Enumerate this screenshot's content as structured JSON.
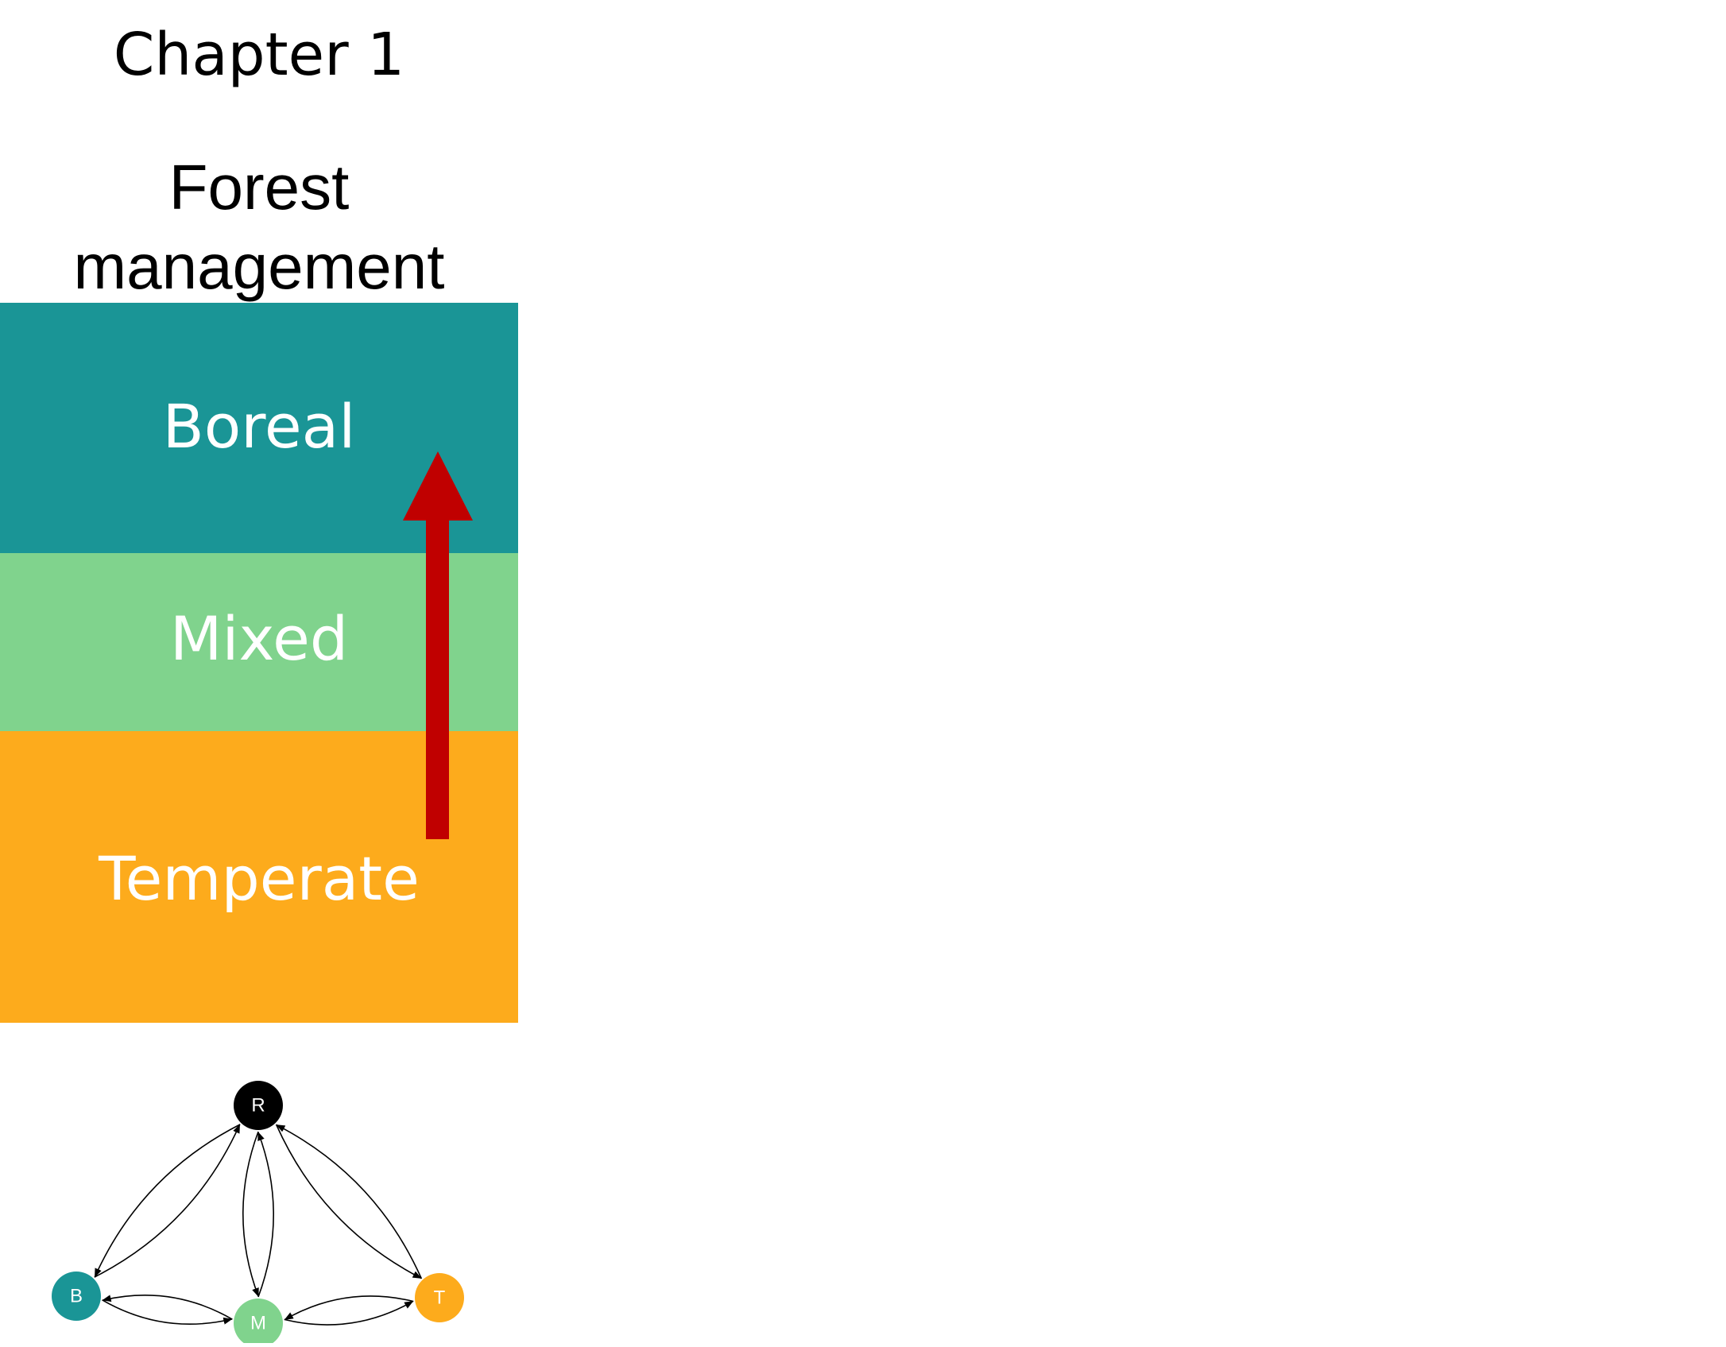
{
  "header": {
    "chapter": "Chapter 1",
    "title_line1": "Forest",
    "title_line2": "management"
  },
  "zones": [
    {
      "label": "Boreal",
      "color": "#1a9596"
    },
    {
      "label": "Mixed",
      "color": "#80d38d"
    },
    {
      "label": "Temperate",
      "color": "#fdab1c"
    }
  ],
  "arrow": {
    "color": "#c00000",
    "direction": "up"
  },
  "network": {
    "nodes": [
      {
        "id": "R",
        "label": "R",
        "color": "#000000"
      },
      {
        "id": "B",
        "label": "B",
        "color": "#1a9596"
      },
      {
        "id": "M",
        "label": "M",
        "color": "#80d38d"
      },
      {
        "id": "T",
        "label": "T",
        "color": "#fdab1c"
      }
    ],
    "edges": [
      [
        "R",
        "B"
      ],
      [
        "B",
        "R"
      ],
      [
        "R",
        "M"
      ],
      [
        "M",
        "R"
      ],
      [
        "R",
        "T"
      ],
      [
        "T",
        "R"
      ],
      [
        "B",
        "M"
      ],
      [
        "M",
        "B"
      ],
      [
        "M",
        "T"
      ],
      [
        "T",
        "M"
      ]
    ]
  }
}
